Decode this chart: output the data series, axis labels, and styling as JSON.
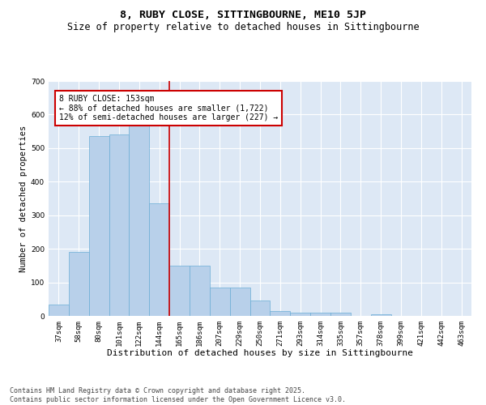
{
  "title1": "8, RUBY CLOSE, SITTINGBOURNE, ME10 5JP",
  "title2": "Size of property relative to detached houses in Sittingbourne",
  "xlabel": "Distribution of detached houses by size in Sittingbourne",
  "ylabel": "Number of detached properties",
  "bar_labels": [
    "37sqm",
    "58sqm",
    "80sqm",
    "101sqm",
    "122sqm",
    "144sqm",
    "165sqm",
    "186sqm",
    "207sqm",
    "229sqm",
    "250sqm",
    "271sqm",
    "293sqm",
    "314sqm",
    "335sqm",
    "357sqm",
    "378sqm",
    "399sqm",
    "421sqm",
    "442sqm",
    "463sqm"
  ],
  "bar_values": [
    35,
    190,
    535,
    540,
    575,
    335,
    150,
    150,
    85,
    85,
    45,
    14,
    10,
    10,
    10,
    0,
    5,
    0,
    0,
    0,
    0
  ],
  "bar_color": "#b8d0ea",
  "bar_edgecolor": "#6aaed6",
  "vline_x": 5.5,
  "vline_color": "#cc0000",
  "annotation_text": "8 RUBY CLOSE: 153sqm\n← 88% of detached houses are smaller (1,722)\n12% of semi-detached houses are larger (227) →",
  "annotation_box_color": "#cc0000",
  "ylim": [
    0,
    700
  ],
  "yticks": [
    0,
    100,
    200,
    300,
    400,
    500,
    600,
    700
  ],
  "bg_color": "#dde8f5",
  "grid_color": "#ffffff",
  "footer": "Contains HM Land Registry data © Crown copyright and database right 2025.\nContains public sector information licensed under the Open Government Licence v3.0.",
  "title1_fontsize": 9.5,
  "title2_fontsize": 8.5,
  "xlabel_fontsize": 8,
  "ylabel_fontsize": 7.5,
  "tick_fontsize": 6.5,
  "annotation_fontsize": 7,
  "footer_fontsize": 6
}
